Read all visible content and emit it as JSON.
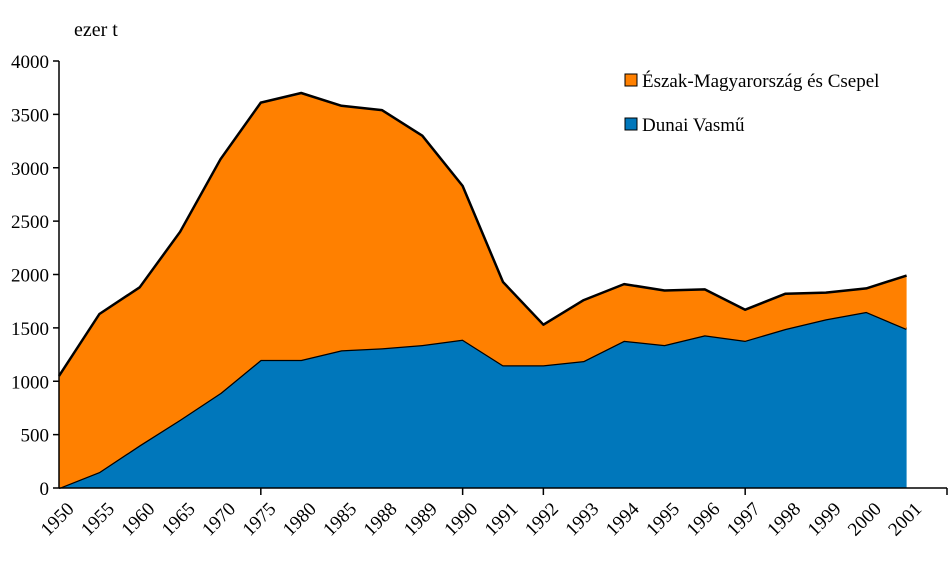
{
  "chart_data": {
    "type": "area",
    "stacked": true,
    "unit_label": "ezer t",
    "categories": [
      "1950",
      "1955",
      "1960",
      "1965",
      "1970",
      "1975",
      "1980",
      "1985",
      "1988",
      "1989",
      "1990",
      "1991",
      "1992",
      "1993",
      "1994",
      "1995",
      "1996",
      "1997",
      "1998",
      "1999",
      "2000",
      "2001"
    ],
    "ylim": [
      0,
      4000
    ],
    "yticks": [
      0,
      500,
      1000,
      1500,
      2000,
      2500,
      3000,
      3500,
      4000
    ],
    "xticks_at_gaps": [
      "1970",
      "1989",
      "1991",
      "1996",
      "2001"
    ],
    "grid": false,
    "legend_position": "top-right",
    "series": [
      {
        "name": "Dunai Vasmű",
        "color": "#0077bb",
        "values": [
          0,
          150,
          400,
          640,
          890,
          1200,
          1200,
          1290,
          1310,
          1340,
          1390,
          1150,
          1150,
          1190,
          1380,
          1340,
          1430,
          1380,
          1490,
          1580,
          1650,
          1490
        ]
      },
      {
        "name": "Észak-Magyarország és Csepel",
        "color": "#ff8000",
        "values": [
          1050,
          1480,
          1480,
          1760,
          2190,
          2410,
          2500,
          2290,
          2230,
          1960,
          1440,
          780,
          380,
          570,
          530,
          510,
          430,
          290,
          330,
          250,
          220,
          500
        ]
      }
    ]
  }
}
